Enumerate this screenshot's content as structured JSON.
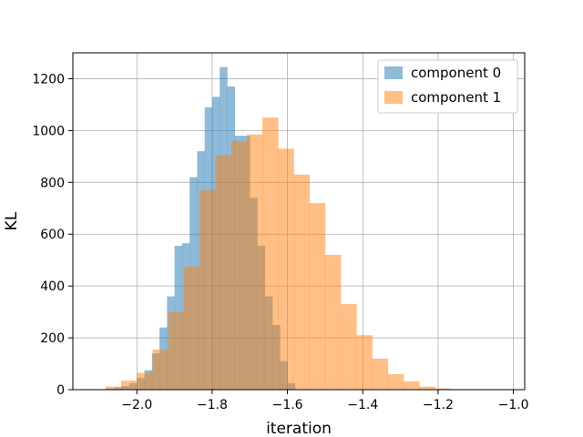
{
  "chart_data": {
    "type": "bar",
    "subtype": "overlaid-histogram",
    "title": "",
    "xlabel": "iteration",
    "ylabel": "KL",
    "xlim": [
      -2.17,
      -0.97
    ],
    "ylim": [
      0,
      1300
    ],
    "grid": true,
    "legend_position": "top-right",
    "xticks": [
      -2.0,
      -1.8,
      -1.6,
      -1.4,
      -1.2,
      -1.0
    ],
    "xtick_labels": [
      "−2.0",
      "−1.8",
      "−1.6",
      "−1.4",
      "−1.2",
      "−1.0"
    ],
    "yticks": [
      0,
      200,
      400,
      600,
      800,
      1000,
      1200
    ],
    "ytick_labels": [
      "0",
      "200",
      "400",
      "600",
      "800",
      "1000",
      "1200"
    ],
    "series": [
      {
        "name": "component 0",
        "color": "#1f77b4",
        "opacity": 0.5,
        "bin_edges": [
          -2.1,
          -2.08,
          -2.06,
          -2.04,
          -2.02,
          -2.0,
          -1.98,
          -1.96,
          -1.94,
          -1.92,
          -1.9,
          -1.88,
          -1.86,
          -1.84,
          -1.82,
          -1.8,
          -1.78,
          -1.76,
          -1.74,
          -1.72,
          -1.7,
          -1.68,
          -1.66,
          -1.64,
          -1.62,
          -1.6,
          -1.58
        ],
        "counts": [
          2,
          4,
          8,
          14,
          25,
          45,
          75,
          140,
          240,
          360,
          555,
          565,
          820,
          920,
          1090,
          1130,
          1245,
          1170,
          980,
          980,
          740,
          555,
          360,
          250,
          110,
          25
        ]
      },
      {
        "name": "component 1",
        "color": "#ff7f0e",
        "opacity": 0.5,
        "bin_edges": [
          -2.0833,
          -2.0417,
          -2.0,
          -1.9583,
          -1.9167,
          -1.875,
          -1.8333,
          -1.7917,
          -1.75,
          -1.7083,
          -1.6667,
          -1.625,
          -1.5833,
          -1.5417,
          -1.5,
          -1.4583,
          -1.4167,
          -1.375,
          -1.3333,
          -1.2917,
          -1.25,
          -1.2083,
          -1.1667,
          -1.125,
          -1.0833,
          -1.0417
        ],
        "counts": [
          12,
          35,
          65,
          155,
          300,
          475,
          770,
          905,
          960,
          985,
          1050,
          930,
          830,
          720,
          520,
          330,
          210,
          120,
          60,
          32,
          12,
          5,
          2,
          1,
          0
        ]
      }
    ]
  }
}
